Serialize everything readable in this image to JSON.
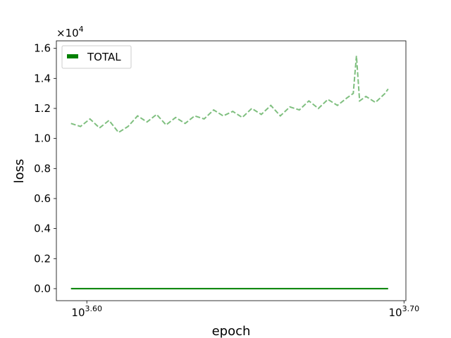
{
  "chart_data": {
    "type": "line",
    "title": "",
    "xlabel": "epoch",
    "ylabel": "loss",
    "x_scale": "log",
    "x_range_log10": [
      3.6,
      3.7
    ],
    "x_ticks": [
      {
        "log10": 3.6,
        "base": "10",
        "exp": "3.60"
      },
      {
        "log10": 3.7,
        "base": "10",
        "exp": "3.70"
      }
    ],
    "ylim": [
      -0.08,
      1.65
    ],
    "y_ticks": [
      "0.0",
      "0.2",
      "0.4",
      "0.6",
      "0.8",
      "1.0",
      "1.2",
      "1.4",
      "1.6"
    ],
    "y_multiplier": {
      "prefix": "×10",
      "exp": "4"
    },
    "grid": false,
    "legend": {
      "placement": "upper-left",
      "entries": [
        "TOTAL"
      ]
    },
    "colors": {
      "total": "#008000",
      "dashed": "#7fbf7f"
    },
    "series": [
      {
        "name": "TOTAL",
        "style": "solid",
        "x_log10": [
          3.595,
          3.695
        ],
        "values": [
          0.0,
          0.0
        ]
      },
      {
        "style": "dashed",
        "x_log10": [
          3.595,
          3.598,
          3.601,
          3.604,
          3.607,
          3.61,
          3.613,
          3.616,
          3.619,
          3.622,
          3.625,
          3.628,
          3.631,
          3.634,
          3.637,
          3.64,
          3.643,
          3.646,
          3.649,
          3.652,
          3.655,
          3.658,
          3.661,
          3.664,
          3.667,
          3.67,
          3.673,
          3.676,
          3.679,
          3.682,
          3.684,
          3.685,
          3.686,
          3.688,
          3.691,
          3.694,
          3.695
        ],
        "values": [
          1.1,
          1.08,
          1.13,
          1.07,
          1.12,
          1.04,
          1.08,
          1.15,
          1.11,
          1.16,
          1.09,
          1.14,
          1.1,
          1.15,
          1.13,
          1.19,
          1.15,
          1.18,
          1.14,
          1.2,
          1.16,
          1.22,
          1.15,
          1.21,
          1.19,
          1.25,
          1.2,
          1.26,
          1.22,
          1.27,
          1.3,
          1.55,
          1.25,
          1.28,
          1.24,
          1.3,
          1.33
        ]
      }
    ]
  }
}
